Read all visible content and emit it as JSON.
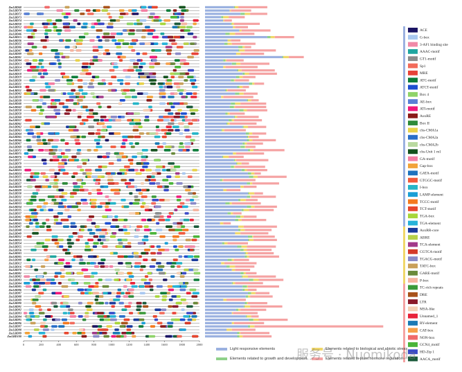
{
  "gene_ids": [
    "ZmLBD68",
    "ZmLBD70",
    "ZmLBD72",
    "ZmLBD73",
    "ZmLBD74",
    "ZmLBD50",
    "ZmLBD52",
    "ZmLBD44",
    "ZmLBD46",
    "ZmLBD15",
    "ZmLBD36",
    "ZmLBD22",
    "ZmLBD06",
    "ZmLBD07",
    "ZmLBD09",
    "ZmLBD01",
    "ZmLBD04",
    "ZmLBD13",
    "ZmLBD14",
    "ZmLBD17",
    "ZmLBD18",
    "ZmLBD19",
    "ZmLBD20",
    "ZmLBD21",
    "ZmLBD10",
    "ZmLBD11",
    "ZmLBD02",
    "ZmLBD38",
    "ZmLBD39",
    "ZmLBD40",
    "ZmLBD42",
    "ZmLBD58",
    "ZmLBD59",
    "ZmLBD60",
    "ZmLBD57",
    "ZmLBD61",
    "ZmLBD62",
    "ZmLBD63",
    "ZmLBD64",
    "ZmLBD65",
    "ZmLBD66",
    "ZmLBD67",
    "ZmLBD69",
    "ZmLBD71",
    "ZmLBD75",
    "ZmLBD76",
    "ZmLBD77",
    "ZmLBD79",
    "ZmLBD80",
    "ZmLBD23",
    "ZmLBD24",
    "ZmLBD25",
    "ZmLBD26",
    "ZmLBD27",
    "ZmLBD28",
    "ZmLBD29",
    "ZmLBD30",
    "ZmLBD31",
    "ZmLBD32",
    "ZmLBD33",
    "ZmLBD34",
    "ZmLBD35",
    "ZmLBD37",
    "ZmLBD41",
    "ZmLBD43",
    "ZmLBD45",
    "ZmLBD47",
    "ZmLBD48",
    "ZmLBD49",
    "ZmLBD51",
    "ZmLBD53",
    "ZmLBD54",
    "ZmLBD55",
    "ZmLBD56",
    "ZmLBD03",
    "ZmLBD05",
    "ZmLBD08",
    "ZmLBD12",
    "ZmLBD16",
    "ZmLBD78",
    "ZmLBD81",
    "ZmLBD82",
    "ZmLBD83",
    "ZmLBD84",
    "ZmLBD85",
    "ZmLBD86",
    "ZmLBD87",
    "ZmLBD88",
    "ZmLBD89",
    "ZmLBD90",
    "ZmLBD91",
    "ZmLBD92",
    "ZmLBD93",
    "ZmLBD94",
    "ZmLBD95",
    "ZmLBD96",
    "ZmLBD97",
    "ZmLBD98",
    "ZmLBD99",
    "ZmLBD100"
  ],
  "x_axis": {
    "ticks": [
      "0",
      "200",
      "400",
      "600",
      "800",
      "1000",
      "1200",
      "1400",
      "1600",
      "1800",
      "2000"
    ],
    "max": 2000
  },
  "motif_legend": [
    {
      "name": "ACE",
      "color": "#1b1464"
    },
    {
      "name": "G-box",
      "color": "#a9c8f0"
    },
    {
      "name": "3-AF1 binding site",
      "color": "#f08aa8"
    },
    {
      "name": "AAAC-motif",
      "color": "#1fa6a0"
    },
    {
      "name": "GT1-motif",
      "color": "#8c8c8c"
    },
    {
      "name": "Sp1",
      "color": "#f26b5b"
    },
    {
      "name": "MRE",
      "color": "#e8433a"
    },
    {
      "name": "ATC-motif",
      "color": "#0d7d3a"
    },
    {
      "name": "ATCT-motif",
      "color": "#1d4fd1"
    },
    {
      "name": "Box 4",
      "color": "#8fd46a"
    },
    {
      "name": "AE-box",
      "color": "#5b7fd6"
    },
    {
      "name": "ATI-motif",
      "color": "#f0197c"
    },
    {
      "name": "AuxRE",
      "color": "#8b1a1a"
    },
    {
      "name": "Box II",
      "color": "#2e8b3a"
    },
    {
      "name": "chs-CMA1a",
      "color": "#e8d24a"
    },
    {
      "name": "chs-CMA2a",
      "color": "#2a6fc9"
    },
    {
      "name": "chs-CMA2b",
      "color": "#b9d9a0"
    },
    {
      "name": "chs-Unit 1 m1",
      "color": "#14521e"
    },
    {
      "name": "GA-motif",
      "color": "#f47fa4"
    },
    {
      "name": "Gap-box",
      "color": "#f2a33a"
    },
    {
      "name": "GATA-motif",
      "color": "#1e73be"
    },
    {
      "name": "GTGGC-motif",
      "color": "#f05a3c"
    },
    {
      "name": "I-box",
      "color": "#25b5c8"
    },
    {
      "name": "LAMP-element",
      "color": "#1a9fd6"
    },
    {
      "name": "TCCC-motif",
      "color": "#f47a20"
    },
    {
      "name": "TCT-motif",
      "color": "#e8472e"
    },
    {
      "name": "TGA-box",
      "color": "#a8d63a"
    },
    {
      "name": "TGA-element",
      "color": "#27b3d9"
    },
    {
      "name": "AuxRR-core",
      "color": "#1a3a9c"
    },
    {
      "name": "ABRE",
      "color": "#b7d14a"
    },
    {
      "name": "TCA-element",
      "color": "#a33a8a"
    },
    {
      "name": "CGTCA-motif",
      "color": "#d43a2a"
    },
    {
      "name": "TGACG-motif",
      "color": "#8a8ac8"
    },
    {
      "name": "TATC-box",
      "color": "#c9a05a"
    },
    {
      "name": "GARE-motif",
      "color": "#6a8a3a"
    },
    {
      "name": "P-box",
      "color": "#f5b5a0"
    },
    {
      "name": "TC-rich repeats",
      "color": "#3a9a3a"
    },
    {
      "name": "DRE",
      "color": "#a8521a"
    },
    {
      "name": "LTR",
      "color": "#8a1a2a"
    },
    {
      "name": "MSA-like",
      "color": "#f5d0b5"
    },
    {
      "name": "Unnamed_1",
      "color": "#e8243a"
    },
    {
      "name": "RY-element",
      "color": "#1a7ab5"
    },
    {
      "name": "CAT-box",
      "color": "#f5a04a"
    },
    {
      "name": "NON-box",
      "color": "#f06a6a"
    },
    {
      "name": "GCN4_motif",
      "color": "#4ab53a"
    },
    {
      "name": "HD-Zip 1",
      "color": "#3a4ac8"
    },
    {
      "name": "AACA_motif",
      "color": "#1a5a3a"
    }
  ],
  "category_colors": {
    "light": "#9bb1e0",
    "growth": "#8fd18a",
    "stress": "#f0d76a",
    "hormone": "#f5a3a3"
  },
  "bottom_legend": {
    "light": "Light responsive elements",
    "stress": "Elements related to biological and abiotic stress",
    "growth": "Elements related to growth and development",
    "hormone": "Elements related to plant hormone regulation"
  },
  "watermark": "服务号 · Nuomikoda"
}
